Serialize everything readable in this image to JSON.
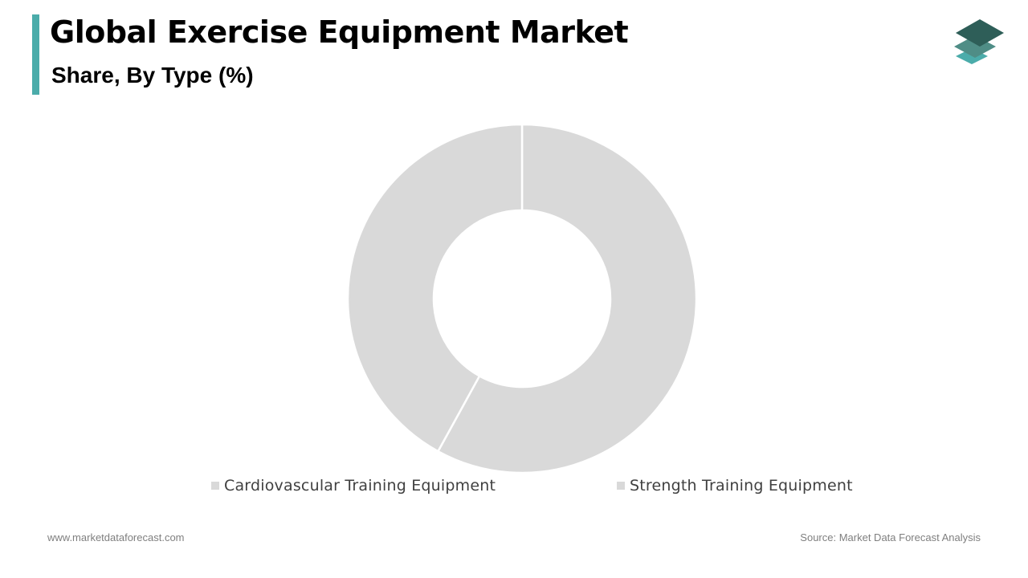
{
  "header": {
    "title": "Global Exercise Equipment Market",
    "subtitle": "Share, By Type (%)"
  },
  "colors": {
    "accent": "#4bacaa",
    "slice_fill": "#d9d9d9",
    "slice_stroke": "#ffffff",
    "logo_dark": "#2e5e58",
    "logo_mid": "#4f8d86",
    "logo_light": "#4bacaa"
  },
  "logo": {
    "icon": "stacked-layers-icon"
  },
  "chart_data": {
    "type": "pie",
    "variant": "donut",
    "title": "",
    "categories": [
      "Cardiovascular Training Equipment",
      "Strength Training Equipment"
    ],
    "values": [
      58,
      42
    ],
    "unit": "%",
    "legend_position": "bottom",
    "data_labels_shown": false
  },
  "footer": {
    "website": "www.marketdataforecast.com",
    "source": "Source: Market Data Forecast Analysis"
  }
}
